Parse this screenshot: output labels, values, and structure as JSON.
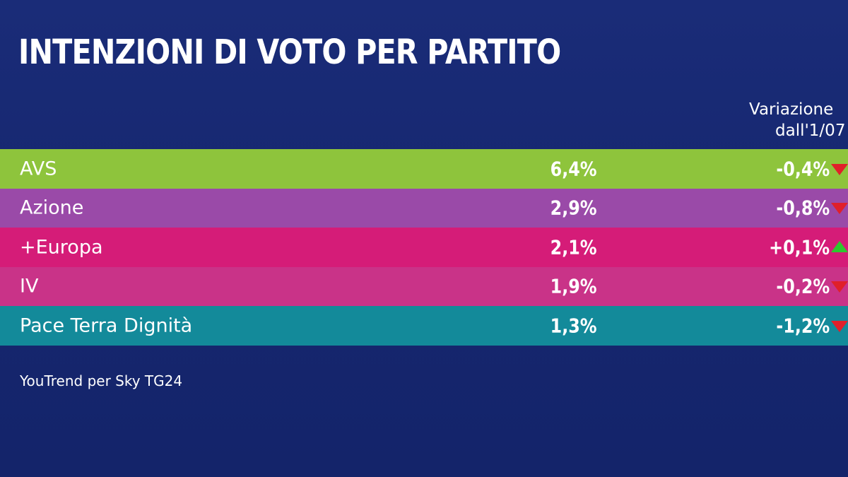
{
  "chart_data": {
    "type": "table",
    "title": "INTENZIONI DI VOTO PER PARTITO",
    "column_header": [
      "Variazione",
      "dall'1/07"
    ],
    "rows": [
      {
        "party": "AVS",
        "value": 6.4,
        "value_label": "6,4%",
        "change": -0.4,
        "change_label": "-0,4%",
        "trend": "down",
        "color": "#8ec43c"
      },
      {
        "party": "Azione",
        "value": 2.9,
        "value_label": "2,9%",
        "change": -0.8,
        "change_label": "-0,8%",
        "trend": "down",
        "color": "#9a4aa8"
      },
      {
        "party": "+Europa",
        "value": 2.1,
        "value_label": "2,1%",
        "change": 0.1,
        "change_label": "+0,1%",
        "trend": "up",
        "color": "#d51c78"
      },
      {
        "party": "IV",
        "value": 1.9,
        "value_label": "1,9%",
        "change": -0.2,
        "change_label": "-0,2%",
        "trend": "down",
        "color": "#c93388"
      },
      {
        "party": "Pace Terra Dignità",
        "value": 1.3,
        "value_label": "1,3%",
        "change": -1.2,
        "change_label": "-1,2%",
        "trend": "down",
        "color": "#138a9a"
      }
    ],
    "source": "YouTrend per Sky TG24"
  },
  "colors": {
    "background": "#162770",
    "arrow_down": "#e0202a",
    "arrow_up": "#2ec82e"
  }
}
